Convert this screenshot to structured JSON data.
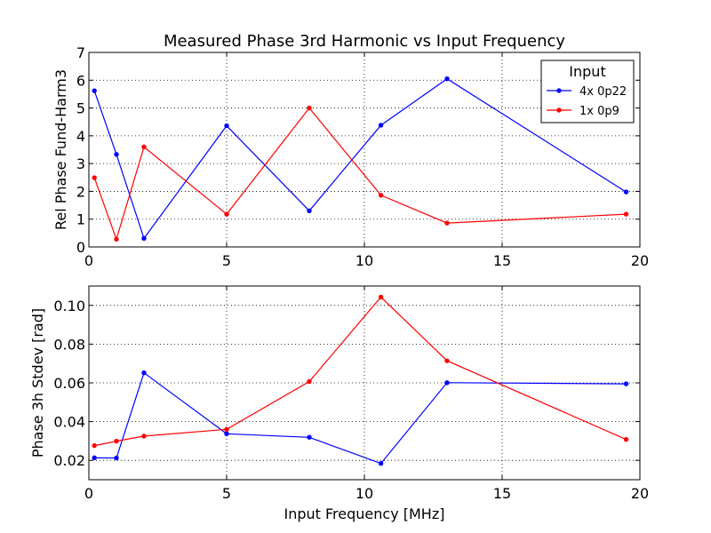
{
  "chart_data": [
    {
      "type": "line",
      "title": "Measured Phase 3rd Harmonic vs Input Frequency",
      "xlabel": "",
      "ylabel": "Rel Phase Fund-Harm3",
      "xlim": [
        0,
        20
      ],
      "ylim": [
        0,
        7
      ],
      "xticks": [
        0,
        5,
        10,
        15,
        20
      ],
      "xtick_labels": [
        "0",
        "5",
        "10",
        "15",
        "20"
      ],
      "yticks": [
        0,
        1,
        2,
        3,
        4,
        5,
        6,
        7
      ],
      "ytick_labels": [
        "0",
        "1",
        "2",
        "3",
        "4",
        "5",
        "6",
        "7"
      ],
      "grid": true,
      "legend": {
        "title": "Input",
        "position": "top-right"
      },
      "series": [
        {
          "name": "4x 0p22",
          "color": "#0000ff",
          "x": [
            0.2,
            1.0,
            2.0,
            5.0,
            8.0,
            10.6,
            13.0,
            19.5
          ],
          "y": [
            5.62,
            3.33,
            0.31,
            4.36,
            1.3,
            4.38,
            6.05,
            1.98
          ]
        },
        {
          "name": "1x 0p9",
          "color": "#ff0000",
          "x": [
            0.2,
            1.0,
            2.0,
            5.0,
            8.0,
            10.6,
            13.0,
            19.5
          ],
          "y": [
            2.49,
            0.28,
            3.6,
            1.18,
            5.0,
            1.86,
            0.86,
            1.18
          ]
        }
      ]
    },
    {
      "type": "line",
      "title": "",
      "xlabel": "Input Frequency [MHz]",
      "ylabel": "Phase 3h Stdev [rad]",
      "xlim": [
        0,
        20
      ],
      "ylim": [
        0.01,
        0.11
      ],
      "xticks": [
        0,
        5,
        10,
        15,
        20
      ],
      "xtick_labels": [
        "0",
        "5",
        "10",
        "15",
        "20"
      ],
      "yticks": [
        0.02,
        0.04,
        0.06,
        0.08,
        0.1
      ],
      "ytick_labels": [
        "0.02",
        "0.04",
        "0.06",
        "0.08",
        "0.10"
      ],
      "grid": true,
      "series": [
        {
          "name": "4x 0p22",
          "color": "#0000ff",
          "x": [
            0.2,
            1.0,
            2.0,
            5.0,
            8.0,
            10.6,
            13.0,
            19.5
          ],
          "y": [
            0.0213,
            0.0212,
            0.0652,
            0.0337,
            0.0319,
            0.0184,
            0.0601,
            0.0595
          ]
        },
        {
          "name": "1x 0p9",
          "color": "#ff0000",
          "x": [
            0.2,
            1.0,
            2.0,
            5.0,
            8.0,
            10.6,
            13.0,
            19.5
          ],
          "y": [
            0.0276,
            0.0299,
            0.0325,
            0.036,
            0.0607,
            0.1043,
            0.0714,
            0.0308
          ]
        }
      ]
    }
  ]
}
